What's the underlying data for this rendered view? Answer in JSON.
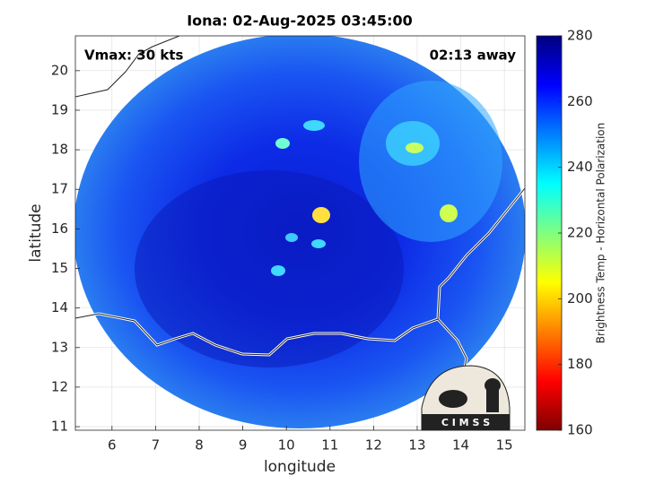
{
  "chart_data": {
    "type": "heatmap",
    "title": "Iona: 02-Aug-2025 03:45:00",
    "xlabel": "longitude",
    "ylabel": "latitude",
    "xlim": [
      5.16,
      15.47
    ],
    "xticks": [
      6,
      7,
      8,
      9,
      10,
      11,
      12,
      13,
      14,
      15
    ],
    "ylim": [
      10.91,
      20.88
    ],
    "yticks": [
      11,
      12,
      13,
      14,
      15,
      16,
      17,
      18,
      19,
      20
    ],
    "grid": true,
    "annotations": [
      "Vmax: 30 kts",
      "02:13 away"
    ],
    "logo_text": "C I M S S",
    "colorbar": {
      "label": "Brightness Temp - Horizontal Polarization",
      "colormap": "jet_r",
      "lim": [
        160,
        280
      ],
      "ticks": [
        160,
        180,
        200,
        220,
        240,
        260,
        280
      ]
    }
  }
}
